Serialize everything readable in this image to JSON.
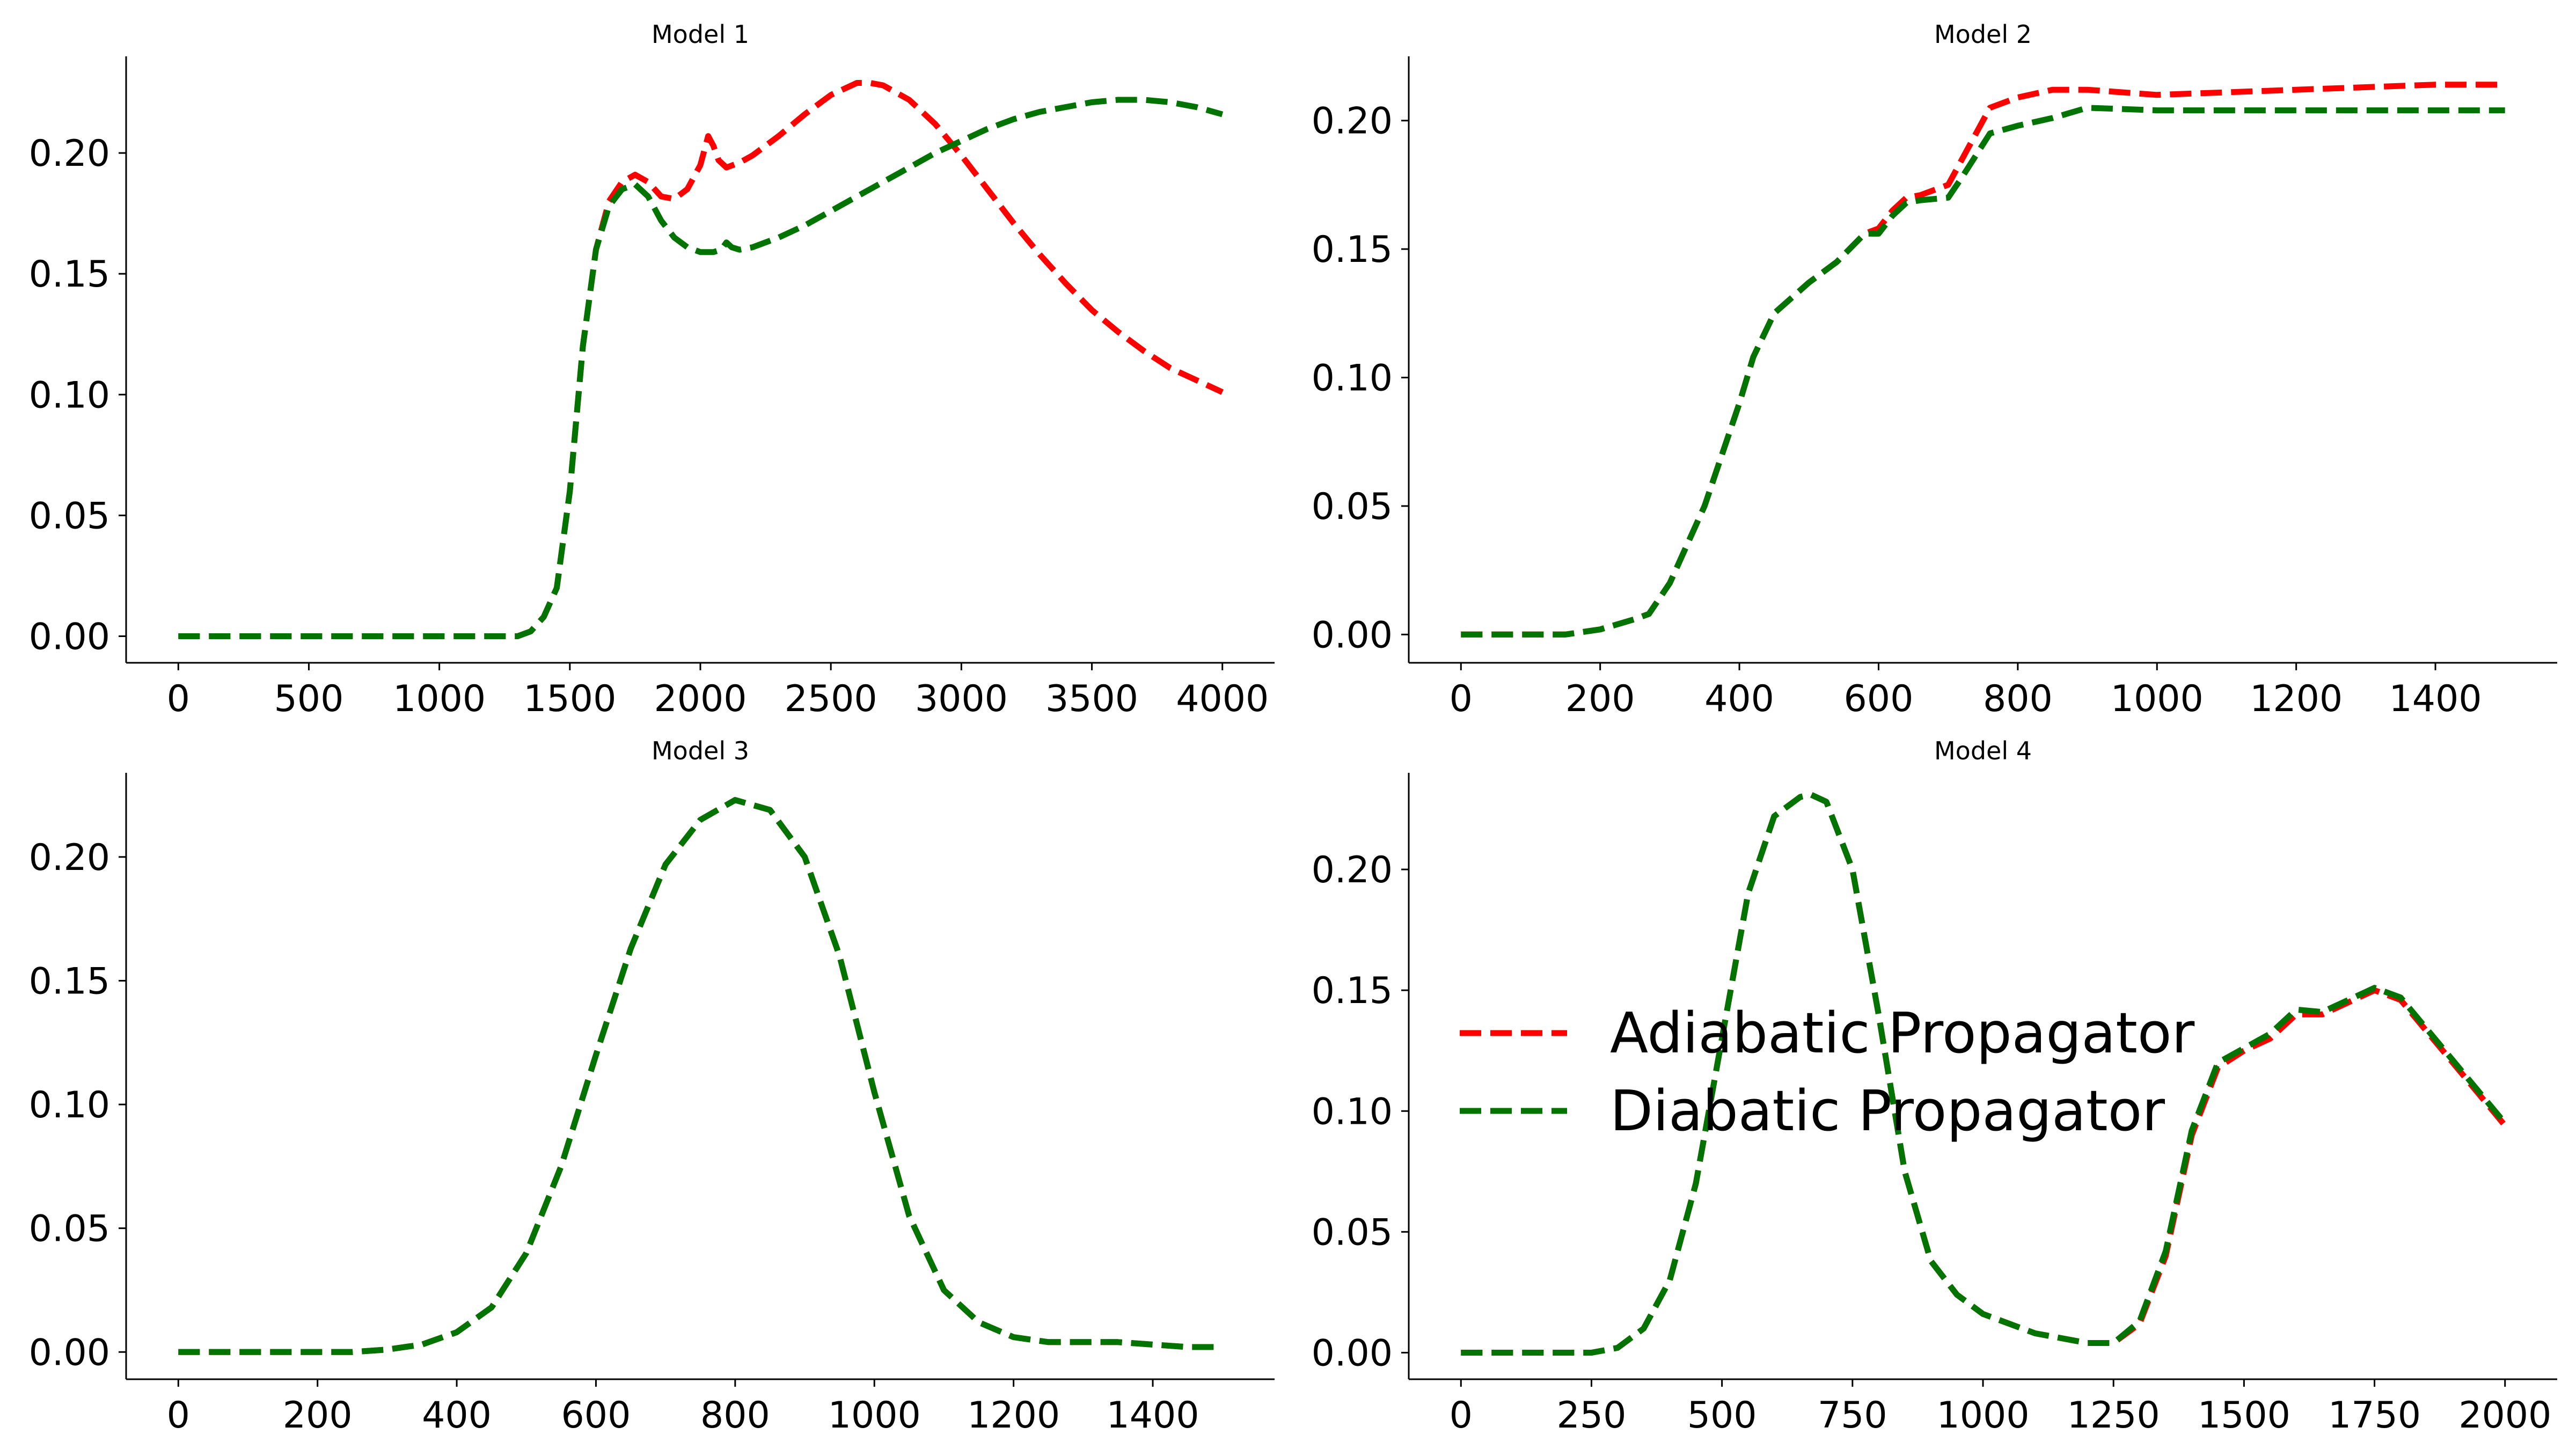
{
  "legend": {
    "entries": [
      {
        "label": "Adiabatic Propagator",
        "color": "#ff0000"
      },
      {
        "label": "Diabatic Propagator",
        "color": "#007300"
      }
    ],
    "location": "center of Model 4 panel"
  },
  "chart_data": [
    {
      "type": "line",
      "title": "Model 1",
      "xlabel": "",
      "ylabel": "",
      "xlim": [
        -200,
        4200
      ],
      "ylim": [
        -0.011,
        0.24
      ],
      "xticks": [
        0,
        500,
        1000,
        1500,
        2000,
        2500,
        3000,
        3500,
        4000
      ],
      "xtick_labels": [
        "0",
        "500",
        "1000",
        "1500",
        "2000",
        "2500",
        "3000",
        "3500",
        "4000"
      ],
      "yticks": [
        0.0,
        0.05,
        0.1,
        0.15,
        0.2
      ],
      "ytick_labels": [
        "0.00",
        "0.05",
        "0.10",
        "0.15",
        "0.20"
      ],
      "series": [
        {
          "name": "Adiabatic Propagator",
          "color": "#ff0000",
          "x": [
            0,
            1300,
            1350,
            1400,
            1450,
            1500,
            1550,
            1600,
            1650,
            1700,
            1750,
            1800,
            1850,
            1900,
            1950,
            2000,
            2030,
            2050,
            2070,
            2100,
            2150,
            2200,
            2300,
            2400,
            2500,
            2600,
            2650,
            2700,
            2800,
            2900,
            3000,
            3100,
            3200,
            3300,
            3400,
            3500,
            3600,
            3700,
            3800,
            3900,
            4000
          ],
          "y": [
            0.0,
            0.0,
            0.002,
            0.008,
            0.02,
            0.06,
            0.12,
            0.16,
            0.18,
            0.188,
            0.191,
            0.188,
            0.182,
            0.181,
            0.185,
            0.195,
            0.207,
            0.203,
            0.197,
            0.194,
            0.196,
            0.199,
            0.207,
            0.216,
            0.224,
            0.229,
            0.229,
            0.228,
            0.222,
            0.212,
            0.199,
            0.185,
            0.171,
            0.158,
            0.146,
            0.135,
            0.126,
            0.118,
            0.111,
            0.106,
            0.101
          ]
        },
        {
          "name": "Diabatic Propagator",
          "color": "#007300",
          "x": [
            0,
            1300,
            1350,
            1400,
            1450,
            1500,
            1550,
            1600,
            1650,
            1700,
            1750,
            1800,
            1850,
            1900,
            1950,
            2000,
            2050,
            2080,
            2100,
            2120,
            2150,
            2200,
            2300,
            2400,
            2500,
            2600,
            2700,
            2800,
            2900,
            3000,
            3100,
            3200,
            3300,
            3400,
            3500,
            3600,
            3700,
            3800,
            3900,
            4000
          ],
          "y": [
            0.0,
            0.0,
            0.002,
            0.008,
            0.02,
            0.06,
            0.12,
            0.16,
            0.178,
            0.185,
            0.187,
            0.182,
            0.172,
            0.165,
            0.161,
            0.159,
            0.159,
            0.16,
            0.163,
            0.161,
            0.16,
            0.161,
            0.165,
            0.17,
            0.176,
            0.182,
            0.188,
            0.194,
            0.2,
            0.205,
            0.21,
            0.214,
            0.217,
            0.219,
            0.221,
            0.222,
            0.222,
            0.221,
            0.219,
            0.216
          ]
        }
      ]
    },
    {
      "type": "line",
      "title": "Model 2",
      "xlabel": "",
      "ylabel": "",
      "xlim": [
        -75,
        1575
      ],
      "ylim": [
        -0.011,
        0.225
      ],
      "xticks": [
        0,
        200,
        400,
        600,
        800,
        1000,
        1200,
        1400
      ],
      "xtick_labels": [
        "0",
        "200",
        "400",
        "600",
        "800",
        "1000",
        "1200",
        "1400"
      ],
      "yticks": [
        0.0,
        0.05,
        0.1,
        0.15,
        0.2
      ],
      "ytick_labels": [
        "0.00",
        "0.05",
        "0.10",
        "0.15",
        "0.20"
      ],
      "series": [
        {
          "name": "Adiabatic Propagator",
          "color": "#ff0000",
          "x": [
            0,
            150,
            200,
            250,
            270,
            300,
            350,
            400,
            420,
            450,
            500,
            540,
            580,
            600,
            620,
            640,
            660,
            700,
            720,
            760,
            800,
            850,
            900,
            1000,
            1100,
            1200,
            1300,
            1400,
            1500
          ],
          "y": [
            0.0,
            0.0,
            0.002,
            0.006,
            0.008,
            0.02,
            0.05,
            0.09,
            0.108,
            0.125,
            0.137,
            0.145,
            0.156,
            0.158,
            0.165,
            0.17,
            0.171,
            0.175,
            0.185,
            0.205,
            0.209,
            0.212,
            0.212,
            0.21,
            0.211,
            0.212,
            0.213,
            0.214,
            0.214
          ]
        },
        {
          "name": "Diabatic Propagator",
          "color": "#007300",
          "x": [
            0,
            150,
            200,
            250,
            270,
            300,
            350,
            400,
            420,
            450,
            500,
            540,
            580,
            600,
            620,
            640,
            660,
            700,
            720,
            760,
            800,
            850,
            900,
            1000,
            1100,
            1200,
            1300,
            1400,
            1500
          ],
          "y": [
            0.0,
            0.0,
            0.002,
            0.006,
            0.008,
            0.02,
            0.05,
            0.09,
            0.108,
            0.125,
            0.137,
            0.145,
            0.156,
            0.156,
            0.163,
            0.168,
            0.169,
            0.17,
            0.178,
            0.195,
            0.198,
            0.201,
            0.205,
            0.204,
            0.204,
            0.204,
            0.204,
            0.204,
            0.204
          ]
        }
      ]
    },
    {
      "type": "line",
      "title": "Model 3",
      "xlabel": "",
      "ylabel": "",
      "xlim": [
        -75,
        1575
      ],
      "ylim": [
        -0.011,
        0.234
      ],
      "xticks": [
        0,
        200,
        400,
        600,
        800,
        1000,
        1200,
        1400
      ],
      "xtick_labels": [
        "0",
        "200",
        "400",
        "600",
        "800",
        "1000",
        "1200",
        "1400"
      ],
      "yticks": [
        0.0,
        0.05,
        0.1,
        0.15,
        0.2
      ],
      "ytick_labels": [
        "0.00",
        "0.05",
        "0.10",
        "0.15",
        "0.20"
      ],
      "series": [
        {
          "name": "Adiabatic Propagator",
          "color": "#ff0000",
          "x": [
            0,
            250,
            300,
            350,
            400,
            450,
            500,
            550,
            600,
            650,
            700,
            750,
            800,
            850,
            900,
            950,
            1000,
            1050,
            1100,
            1150,
            1200,
            1250,
            1300,
            1350,
            1400,
            1450,
            1500
          ],
          "y": [
            0.0,
            0.0,
            0.001,
            0.003,
            0.008,
            0.018,
            0.04,
            0.075,
            0.12,
            0.163,
            0.197,
            0.215,
            0.223,
            0.219,
            0.2,
            0.16,
            0.105,
            0.055,
            0.025,
            0.012,
            0.006,
            0.004,
            0.004,
            0.004,
            0.003,
            0.002,
            0.002
          ]
        },
        {
          "name": "Diabatic Propagator",
          "color": "#007300",
          "x": [
            0,
            250,
            300,
            350,
            400,
            450,
            500,
            550,
            600,
            650,
            700,
            750,
            800,
            850,
            900,
            950,
            1000,
            1050,
            1100,
            1150,
            1200,
            1250,
            1300,
            1350,
            1400,
            1450,
            1500
          ],
          "y": [
            0.0,
            0.0,
            0.001,
            0.003,
            0.008,
            0.018,
            0.04,
            0.075,
            0.12,
            0.163,
            0.197,
            0.215,
            0.223,
            0.219,
            0.2,
            0.16,
            0.105,
            0.055,
            0.025,
            0.012,
            0.006,
            0.004,
            0.004,
            0.004,
            0.003,
            0.002,
            0.002
          ]
        }
      ]
    },
    {
      "type": "line",
      "title": "Model 4",
      "xlabel": "",
      "ylabel": "",
      "xlim": [
        -100,
        2100
      ],
      "ylim": [
        -0.011,
        0.24
      ],
      "xticks": [
        0,
        250,
        500,
        750,
        1000,
        1250,
        1500,
        1750,
        2000
      ],
      "xtick_labels": [
        "0",
        "250",
        "500",
        "750",
        "1000",
        "1250",
        "1500",
        "1750",
        "2000"
      ],
      "yticks": [
        0.0,
        0.05,
        0.1,
        0.15,
        0.2
      ],
      "ytick_labels": [
        "0.00",
        "0.05",
        "0.10",
        "0.15",
        "0.20"
      ],
      "series": [
        {
          "name": "Adiabatic Propagator",
          "color": "#ff0000",
          "x": [
            0,
            250,
            300,
            350,
            400,
            450,
            500,
            550,
            600,
            650,
            670,
            700,
            750,
            800,
            850,
            900,
            950,
            1000,
            1100,
            1200,
            1250,
            1300,
            1350,
            1400,
            1450,
            1500,
            1550,
            1600,
            1650,
            1700,
            1750,
            1800,
            1850,
            1900,
            1950,
            2000
          ],
          "y": [
            0.0,
            0.0,
            0.002,
            0.01,
            0.03,
            0.07,
            0.13,
            0.19,
            0.222,
            0.23,
            0.231,
            0.228,
            0.2,
            0.14,
            0.075,
            0.038,
            0.024,
            0.016,
            0.008,
            0.004,
            0.004,
            0.012,
            0.04,
            0.09,
            0.118,
            0.125,
            0.13,
            0.14,
            0.14,
            0.145,
            0.15,
            0.146,
            0.133,
            0.12,
            0.107,
            0.094
          ]
        },
        {
          "name": "Diabatic Propagator",
          "color": "#007300",
          "x": [
            0,
            250,
            300,
            350,
            400,
            450,
            500,
            550,
            600,
            650,
            670,
            700,
            750,
            800,
            850,
            900,
            950,
            1000,
            1100,
            1200,
            1250,
            1300,
            1350,
            1400,
            1450,
            1500,
            1550,
            1600,
            1650,
            1700,
            1750,
            1800,
            1850,
            1900,
            1950,
            2000
          ],
          "y": [
            0.0,
            0.0,
            0.002,
            0.01,
            0.03,
            0.07,
            0.13,
            0.19,
            0.222,
            0.23,
            0.231,
            0.228,
            0.2,
            0.14,
            0.075,
            0.038,
            0.024,
            0.016,
            0.008,
            0.004,
            0.004,
            0.013,
            0.042,
            0.092,
            0.12,
            0.126,
            0.132,
            0.142,
            0.141,
            0.146,
            0.151,
            0.147,
            0.134,
            0.121,
            0.108,
            0.095
          ]
        }
      ]
    }
  ]
}
